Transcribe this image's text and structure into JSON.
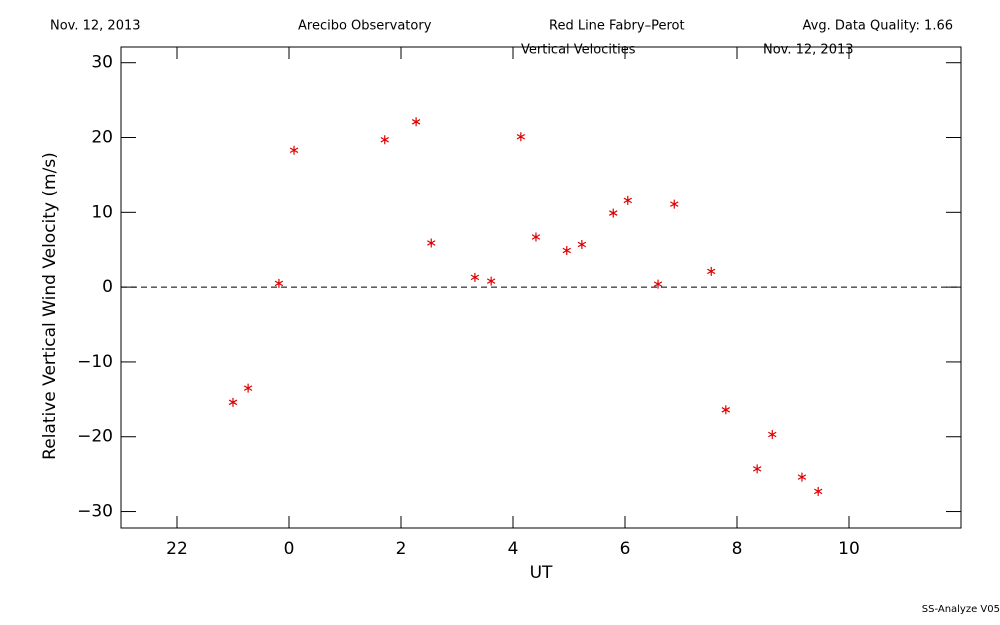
{
  "chart_data": {
    "type": "scatter",
    "header": [
      "Nov. 12, 2013",
      "Arecibo Observatory",
      "Red Line Fabry–Perot",
      "Avg. Data Quality: 1.66"
    ],
    "title": "Vertical Velocities",
    "subtitle": "Nov. 12, 2013",
    "x_label": "UT",
    "y_label": "Relative Vertical Wind Velocity (m/s)",
    "footer": "SS-Analyze V05",
    "xlim": [
      -3,
      12
    ],
    "xticks": [
      {
        "value": -2,
        "label": "22"
      },
      0,
      2,
      4,
      6,
      8,
      10
    ],
    "ylim": [
      -32.2,
      32.1
    ],
    "yticks": [
      {
        "value": -30,
        "label": "−30"
      },
      {
        "value": -20,
        "label": "−20"
      },
      {
        "value": -10,
        "label": "−10"
      },
      0,
      10,
      20,
      30
    ],
    "reference_line": 0,
    "series": [
      {
        "color": "#e00000",
        "x": [
          -1.0,
          -0.73,
          -0.18,
          0.09,
          1.71,
          2.27,
          2.54,
          3.32,
          3.61,
          4.14,
          4.41,
          4.96,
          5.23,
          5.79,
          6.05,
          6.59,
          6.88,
          7.54,
          7.8,
          8.36,
          8.63,
          9.16,
          9.45
        ],
        "values": [
          -15.4,
          -13.5,
          0.5,
          18.3,
          19.7,
          22.1,
          5.9,
          1.3,
          0.8,
          20.1,
          6.7,
          4.9,
          5.7,
          9.9,
          11.6,
          0.4,
          11.1,
          2.1,
          -16.4,
          -24.3,
          -19.7,
          -25.4,
          -27.3
        ]
      }
    ]
  }
}
